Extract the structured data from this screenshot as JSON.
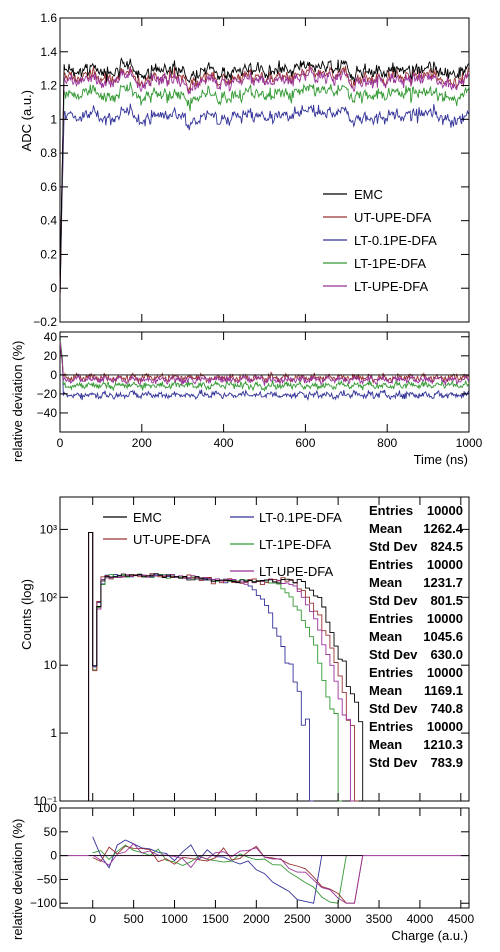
{
  "colors": {
    "EMC": "#000000",
    "UT-UPE-DFA": "#993333",
    "LT-0.1PE-DFA": "#333399",
    "LT-1PE-DFA": "#339933",
    "LT-UPE-DFA": "#993399"
  },
  "chart_data": [
    {
      "type": "line",
      "panel": "waveform",
      "ylabel": "ADC (a.u.)",
      "xlim": [
        0,
        1000
      ],
      "ylim": [
        -0.2,
        1.6
      ],
      "x_ticks": [
        0,
        200,
        400,
        600,
        800,
        1000
      ],
      "y_ticks": [
        -0.2,
        0,
        0.2,
        0.4,
        0.6,
        0.8,
        1,
        1.2,
        1.4,
        1.6
      ],
      "y_tick_labels": [
        "−0.2",
        "0",
        "0.2",
        "0.4",
        "0.6",
        "0.8",
        "1",
        "1.2",
        "1.4",
        "1.6"
      ],
      "rise_time_ns": 10,
      "legend_position": "bottom-right",
      "series": [
        {
          "name": "EMC",
          "plateau": 1.29,
          "noise": 0.06
        },
        {
          "name": "UT-UPE-DFA",
          "plateau": 1.25,
          "noise": 0.06
        },
        {
          "name": "LT-0.1PE-DFA",
          "plateau": 1.02,
          "noise": 0.06
        },
        {
          "name": "LT-1PE-DFA",
          "plateau": 1.15,
          "noise": 0.06
        },
        {
          "name": "LT-UPE-DFA",
          "plateau": 1.23,
          "noise": 0.06
        }
      ]
    },
    {
      "type": "line",
      "panel": "waveform-deviation",
      "xlabel": "Time (ns)",
      "ylabel": "relative deviation (%)",
      "xlim": [
        0,
        1000
      ],
      "ylim": [
        -60,
        45
      ],
      "x_ticks": [
        0,
        200,
        400,
        600,
        800,
        1000
      ],
      "x_tick_labels": [
        "0",
        "200",
        "400",
        "600",
        "800",
        "1000"
      ],
      "y_ticks": [
        -40,
        -20,
        0,
        20,
        40
      ],
      "y_tick_labels": [
        "−40",
        "−20",
        "0",
        "20",
        "40"
      ],
      "series": [
        {
          "name": "EMC",
          "level": 0
        },
        {
          "name": "UT-UPE-DFA",
          "level": -3
        },
        {
          "name": "LT-0.1PE-DFA",
          "level": -21
        },
        {
          "name": "LT-1PE-DFA",
          "level": -11
        },
        {
          "name": "LT-UPE-DFA",
          "level": -5
        }
      ]
    },
    {
      "type": "histogram",
      "panel": "charge-spectrum",
      "ylabel": "Counts (log)",
      "xlim": [
        -400,
        4600
      ],
      "ylim": [
        0.1,
        3000
      ],
      "y_log": true,
      "y_ticks": [
        0.1,
        1,
        10,
        100,
        1000
      ],
      "y_tick_labels": [
        "10⁻¹",
        "1",
        "10",
        "10²",
        "10³"
      ],
      "bin_width": 50,
      "pedestal_bin": {
        "x": -50,
        "count": 900
      },
      "series": [
        {
          "name": "EMC",
          "entries": 10000,
          "mean": 1262.4,
          "std_dev": 824.5,
          "cutoff": 3300
        },
        {
          "name": "UT-UPE-DFA",
          "entries": 10000,
          "mean": 1231.7,
          "std_dev": 801.5,
          "cutoff": 3200
        },
        {
          "name": "LT-0.1PE-DFA",
          "entries": 10000,
          "mean": 1045.6,
          "std_dev": 630.0,
          "cutoff": 2650
        },
        {
          "name": "LT-1PE-DFA",
          "entries": 10000,
          "mean": 1169.1,
          "std_dev": 740.8,
          "cutoff": 3000
        },
        {
          "name": "LT-UPE-DFA",
          "entries": 10000,
          "mean": 1210.3,
          "std_dev": 783.9,
          "cutoff": 3150
        }
      ]
    },
    {
      "type": "line",
      "panel": "charge-deviation",
      "xlabel": "Charge (a.u.)",
      "ylabel": "relative deviation (%)",
      "xlim": [
        -400,
        4600
      ],
      "ylim": [
        -110,
        100
      ],
      "x_ticks": [
        0,
        500,
        1000,
        1500,
        2000,
        2500,
        3000,
        3500,
        4000,
        4500
      ],
      "x_tick_labels": [
        "0",
        "500",
        "1000",
        "1500",
        "2000",
        "2500",
        "3000",
        "3500",
        "4000",
        "4500"
      ],
      "y_ticks": [
        -100,
        -50,
        0,
        50,
        100
      ],
      "y_tick_labels": [
        "−100",
        "−50",
        "0",
        "50",
        "100"
      ]
    }
  ],
  "labels": {
    "adc_axis": "ADC (a.u.)",
    "relative_deviation": "relative deviation (%)",
    "time_axis": "Time (ns)",
    "counts_axis": "Counts (log)",
    "charge_axis": "Charge (a.u.)"
  },
  "legend": {
    "waveform": [
      "EMC",
      "UT-UPE-DFA",
      "LT-0.1PE-DFA",
      "LT-1PE-DFA",
      "LT-UPE-DFA"
    ],
    "charge": [
      "EMC",
      "UT-UPE-DFA",
      "LT-0.1PE-DFA",
      "LT-1PE-DFA",
      "LT-UPE-DFA"
    ]
  },
  "stats_labels": {
    "entries": "Entries",
    "mean": "Mean",
    "std_dev": "Std Dev"
  },
  "stats_values": [
    {
      "entries": "10000",
      "mean": "1262.4",
      "std_dev": "824.5"
    },
    {
      "entries": "10000",
      "mean": "1231.7",
      "std_dev": "801.5"
    },
    {
      "entries": "10000",
      "mean": "1045.6",
      "std_dev": "630.0"
    },
    {
      "entries": "10000",
      "mean": "1169.1",
      "std_dev": "740.8"
    },
    {
      "entries": "10000",
      "mean": "1210.3",
      "std_dev": "783.9"
    }
  ]
}
